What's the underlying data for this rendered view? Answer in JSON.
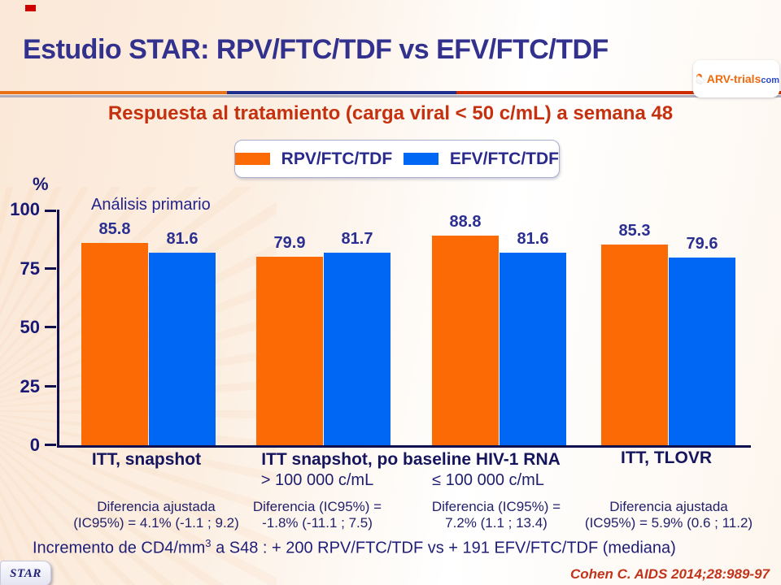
{
  "slide": {
    "title": "Estudio STAR: RPV/FTC/TDF vs EFV/FTC/TDF",
    "subtitle": "Respuesta al tratamiento (carga viral < 50 c/mL) a semana 48",
    "logo": {
      "brand": "ARV-trials",
      "tld": "com"
    },
    "badge": "STAR",
    "citation": "Cohen C. AIDS 2014;28:989-97",
    "cd4_note": {
      "prefix": "Incremento de CD4/mm",
      "sup": "3",
      "suffix": " a S48 : + 200 RPV/FTC/TDF  vs + 191 EFV/FTC/TDF  (mediana)"
    }
  },
  "chart_data": {
    "type": "bar",
    "title": "Respuesta al tratamiento (carga viral < 50 c/mL) a semana 48",
    "xlabel": "",
    "ylabel": "%",
    "ylim": [
      0,
      100
    ],
    "yticks": [
      0,
      25,
      50,
      75,
      100
    ],
    "grid": false,
    "legend_position": "top",
    "annotation": "Análisis primario",
    "series": [
      {
        "name": "RPV/FTC/TDF",
        "color": "#fb6a04",
        "values": [
          85.8,
          79.9,
          88.8,
          85.3
        ]
      },
      {
        "name": "EFV/FTC/TDF",
        "color": "#0066f4",
        "values": [
          81.6,
          81.7,
          81.6,
          79.6
        ]
      }
    ],
    "categories": [
      "ITT, snapshot",
      "> 100 000 c/mL",
      "≤ 100 000 c/mL",
      "ITT, TLOVR"
    ],
    "shared_group_label": "ITT snapshot, po baseline HIV-1 RNA",
    "groups": [
      {
        "label": "ITT, snapshot",
        "sublabel": "",
        "difference": [
          "Diferencia ajustada",
          "(IC95%) = 4.1% (-1.1 ; 9.2)"
        ]
      },
      {
        "label": "",
        "sublabel": "> 100 000 c/mL",
        "difference": [
          "Diferencia (IC95%) =",
          "-1.8% (-11.1 ; 7.5)"
        ]
      },
      {
        "label": "",
        "sublabel": "≤ 100 000 c/mL",
        "difference": [
          "Diferencia (IC95%) =",
          "7.2% (1.1 ; 13.4)"
        ]
      },
      {
        "label": "ITT, TLOVR",
        "sublabel": "",
        "difference": [
          "Diferencia ajustada",
          "(IC95%) = 5.9% (0.6 ; 11.2)"
        ]
      }
    ]
  }
}
